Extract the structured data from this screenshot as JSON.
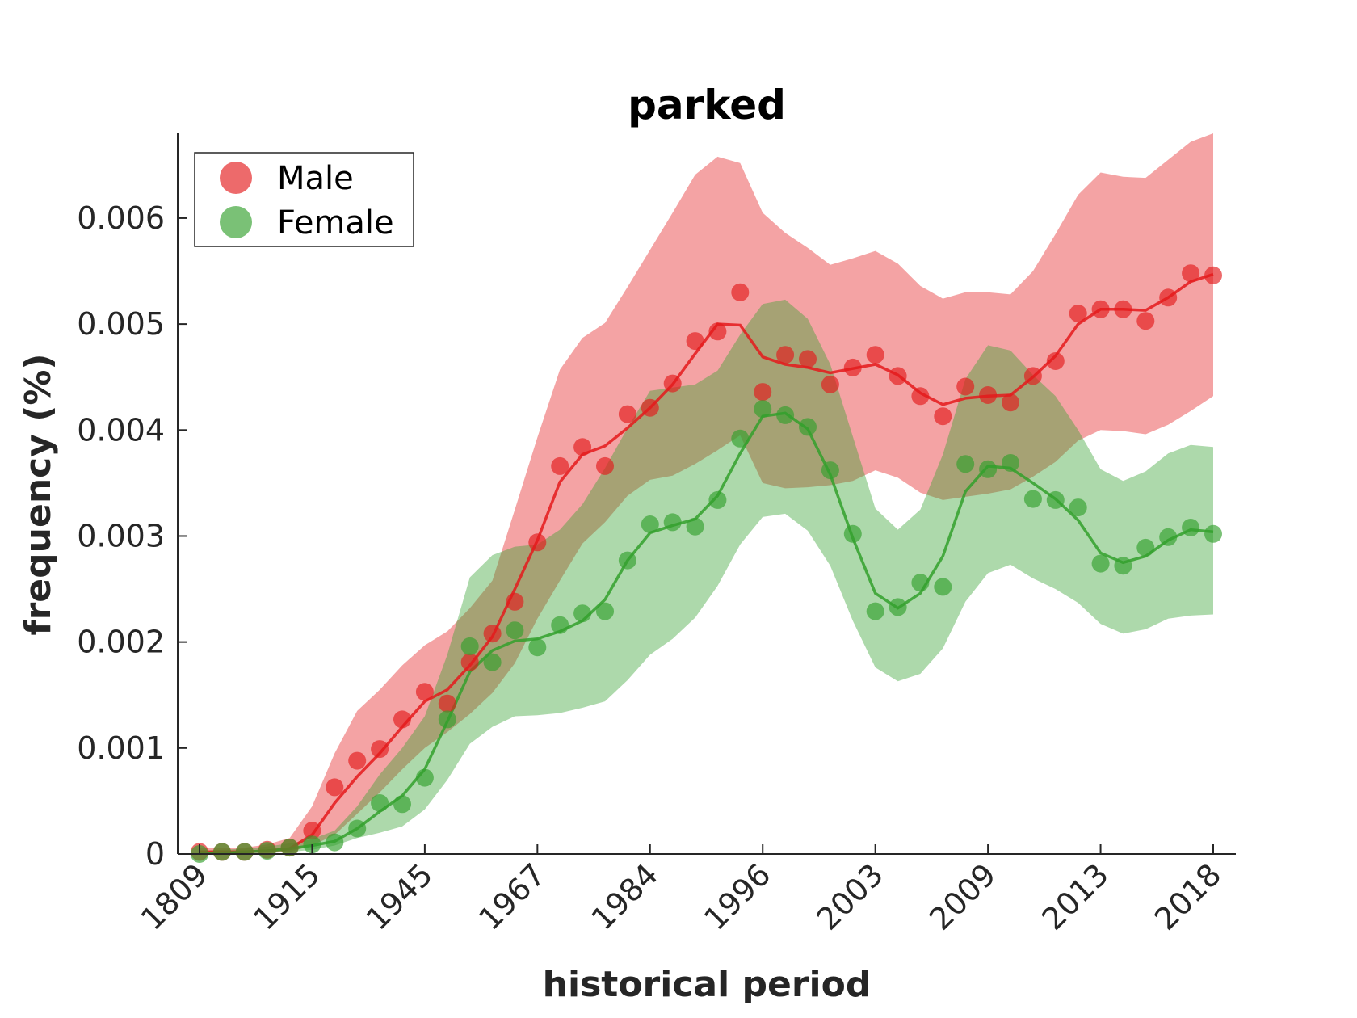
{
  "chart_data": {
    "type": "line",
    "title": "parked",
    "xlabel": "historical period",
    "ylabel": "frequency (%)",
    "ylim": [
      0,
      0.0068
    ],
    "yticks": [
      0,
      0.001,
      0.002,
      0.003,
      0.004,
      0.005,
      0.006
    ],
    "ytick_labels": [
      "0",
      "0.001",
      "0.002",
      "0.003",
      "0.004",
      "0.005",
      "0.006"
    ],
    "x_ticks": [
      "1809",
      "1915",
      "1945",
      "1967",
      "1984",
      "1996",
      "2003",
      "2009",
      "2013",
      "2018"
    ],
    "legend_position": "top-left",
    "grid": false,
    "series": [
      {
        "name": "Male",
        "color": "#e41a1c",
        "points": [
          2e-05,
          2e-05,
          2e-05,
          4e-05,
          6e-05,
          0.00022,
          0.00063,
          0.00088,
          0.00099,
          0.00127,
          0.00153,
          0.00142,
          0.00181,
          0.00208,
          0.00238,
          0.00294,
          0.00366,
          0.00384,
          0.00366,
          0.00415,
          0.00421,
          0.00444,
          0.00484,
          0.00493,
          0.0053,
          0.00436,
          0.00471,
          0.00467,
          0.00443,
          0.00459,
          0.00471,
          0.00451,
          0.00432,
          0.00413,
          0.00441,
          0.00433,
          0.00426,
          0.00451,
          0.00465,
          0.0051,
          0.00514,
          0.00514,
          0.00503,
          0.00525,
          0.00548,
          0.00546
        ],
        "trend": [
          2e-05,
          2e-05,
          2e-05,
          3e-05,
          5e-05,
          0.00018,
          0.00048,
          0.00073,
          0.00095,
          0.0012,
          0.00144,
          0.00155,
          0.00178,
          0.00205,
          0.0025,
          0.00296,
          0.00351,
          0.00377,
          0.00385,
          0.00402,
          0.00421,
          0.00443,
          0.00472,
          0.005,
          0.00499,
          0.00469,
          0.00462,
          0.00459,
          0.00454,
          0.00458,
          0.00462,
          0.00452,
          0.00435,
          0.00424,
          0.0043,
          0.00432,
          0.00433,
          0.0045,
          0.0047,
          0.005,
          0.00514,
          0.00514,
          0.00513,
          0.00525,
          0.0054,
          0.00547
        ],
        "band_upper": [
          6e-05,
          6e-05,
          6e-05,
          9e-05,
          0.00015,
          0.00045,
          0.00095,
          0.00135,
          0.00155,
          0.00178,
          0.00197,
          0.0021,
          0.00232,
          0.00258,
          0.00325,
          0.00393,
          0.00457,
          0.00487,
          0.00501,
          0.00535,
          0.0057,
          0.00605,
          0.00641,
          0.00658,
          0.00652,
          0.00605,
          0.00586,
          0.00572,
          0.00556,
          0.00562,
          0.00569,
          0.00557,
          0.00536,
          0.00524,
          0.0053,
          0.0053,
          0.00528,
          0.0055,
          0.00585,
          0.00622,
          0.00643,
          0.00639,
          0.00638,
          0.00655,
          0.00672,
          0.0069
        ],
        "band_lower": [
          1e-05,
          1e-05,
          1e-05,
          1e-05,
          2e-05,
          8e-05,
          0.00018,
          0.00038,
          0.00058,
          0.0008,
          0.001,
          0.00115,
          0.00132,
          0.00152,
          0.0018,
          0.00222,
          0.00258,
          0.00293,
          0.00313,
          0.00338,
          0.00353,
          0.00357,
          0.00368,
          0.00381,
          0.00395,
          0.0035,
          0.00345,
          0.00346,
          0.00348,
          0.00352,
          0.00362,
          0.00355,
          0.00341,
          0.00334,
          0.00337,
          0.0034,
          0.00344,
          0.00356,
          0.0037,
          0.0039,
          0.004,
          0.00399,
          0.00396,
          0.00405,
          0.00418,
          0.00432
        ]
      },
      {
        "name": "Female",
        "color": "#33a02c",
        "points": [
          0.0,
          2e-05,
          2e-05,
          3e-05,
          6e-05,
          9e-05,
          0.00011,
          0.00024,
          0.00048,
          0.00047,
          0.00072,
          0.00127,
          0.00196,
          0.00181,
          0.00211,
          0.00195,
          0.00216,
          0.00227,
          0.00229,
          0.00277,
          0.00311,
          0.00313,
          0.00309,
          0.00334,
          0.00392,
          0.0042,
          0.00414,
          0.00403,
          0.00362,
          0.00302,
          0.00229,
          0.00233,
          0.00256,
          0.00252,
          0.00368,
          0.00363,
          0.00369,
          0.00335,
          0.00334,
          0.00327,
          0.00274,
          0.00272,
          0.00289,
          0.00299,
          0.00308,
          0.00302
        ],
        "trend": [
          1e-05,
          1e-05,
          2e-05,
          3e-05,
          5e-05,
          8e-05,
          0.00012,
          0.00024,
          0.0004,
          0.00055,
          0.0008,
          0.00125,
          0.00172,
          0.00192,
          0.00201,
          0.00203,
          0.0021,
          0.0022,
          0.0024,
          0.00277,
          0.00303,
          0.0031,
          0.00316,
          0.00338,
          0.00378,
          0.00413,
          0.00416,
          0.00401,
          0.00358,
          0.00298,
          0.00246,
          0.00232,
          0.00246,
          0.00281,
          0.00342,
          0.00366,
          0.00364,
          0.0035,
          0.00335,
          0.00315,
          0.00284,
          0.00275,
          0.00281,
          0.00296,
          0.00306,
          0.00304
        ],
        "band_upper": [
          3e-05,
          4e-05,
          5e-05,
          7e-05,
          0.0001,
          0.00014,
          0.00022,
          0.00045,
          0.00075,
          0.001,
          0.0013,
          0.00188,
          0.00261,
          0.00282,
          0.0029,
          0.00292,
          0.00306,
          0.0033,
          0.00364,
          0.00402,
          0.00437,
          0.0044,
          0.00443,
          0.00456,
          0.0049,
          0.00519,
          0.00523,
          0.00505,
          0.00462,
          0.00394,
          0.00326,
          0.00306,
          0.00325,
          0.00377,
          0.00448,
          0.0048,
          0.00475,
          0.00452,
          0.00432,
          0.004,
          0.00363,
          0.00352,
          0.00361,
          0.00378,
          0.00386,
          0.00384
        ],
        "band_lower": [
          0.0,
          0.0,
          1e-05,
          1e-05,
          2e-05,
          4e-05,
          8e-05,
          0.00015,
          0.0002,
          0.00026,
          0.00042,
          0.0007,
          0.00104,
          0.0012,
          0.0013,
          0.00131,
          0.00133,
          0.00138,
          0.00144,
          0.00164,
          0.00188,
          0.00203,
          0.00223,
          0.00253,
          0.00292,
          0.00318,
          0.00321,
          0.00305,
          0.00272,
          0.0022,
          0.00176,
          0.00163,
          0.0017,
          0.00194,
          0.00238,
          0.00265,
          0.00273,
          0.0026,
          0.0025,
          0.00237,
          0.00217,
          0.00208,
          0.00212,
          0.00222,
          0.00225,
          0.00226
        ]
      }
    ]
  }
}
